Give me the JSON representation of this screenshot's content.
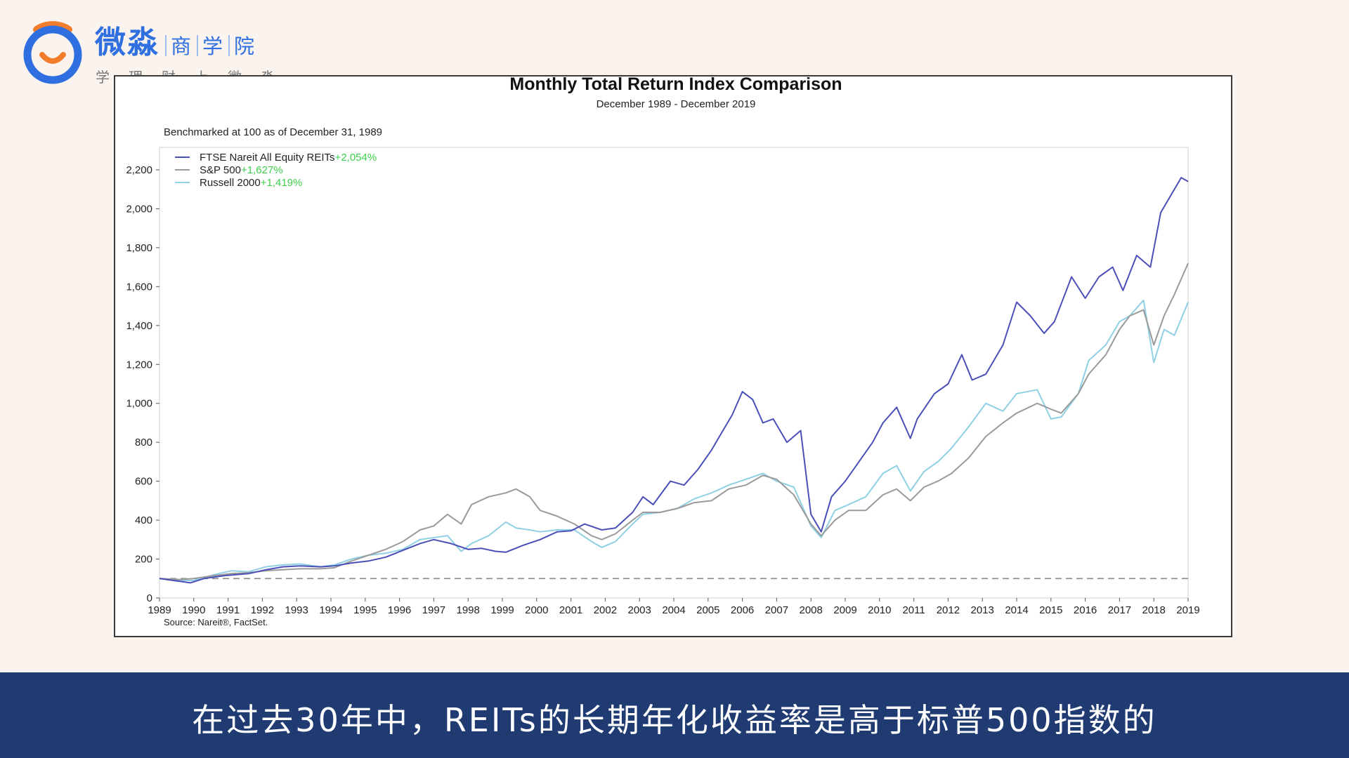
{
  "logo": {
    "brand": "微淼",
    "sub1": "商",
    "sub2": "学",
    "sub3": "院",
    "tagline": "学理财上微淼",
    "icon": "smile-ring-icon"
  },
  "subtitle": "在过去30年中，REITs的长期年化收益率是高于标普500指数的",
  "colors": {
    "background": "#fbf4ee",
    "subtitle_bar": "#1f3b72",
    "reits": "#4a4fb8",
    "sp500": "#9a9a9a",
    "russell": "#8fd0e4",
    "legend_pct": "#3ecf4a",
    "baseline": "#888888",
    "brand_blue": "#2f6fe0",
    "brand_orange": "#f27d2a"
  },
  "chart_data": {
    "type": "line",
    "title": "Monthly Total Return Index Comparison",
    "subtitle": "December 1989 - December 2019",
    "note": "Benchmarked at 100 as of December 31, 1989",
    "source": "Source: Nareit®, FactSet.",
    "x_ticks": [
      "1989",
      "1990",
      "1991",
      "1992",
      "1993",
      "1994",
      "1995",
      "1996",
      "1997",
      "1998",
      "1999",
      "2000",
      "2001",
      "2002",
      "2003",
      "2004",
      "2005",
      "2006",
      "2007",
      "2008",
      "2009",
      "2010",
      "2011",
      "2012",
      "2013",
      "2014",
      "2015",
      "2016",
      "2017",
      "2018",
      "2019"
    ],
    "y_ticks": [
      "0",
      "200",
      "400",
      "600",
      "800",
      "1,000",
      "1,200",
      "1,400",
      "1,600",
      "1,800",
      "2,000",
      "2,200"
    ],
    "xlim": [
      1989.9,
      2019.9
    ],
    "ylim": [
      0,
      2200
    ],
    "baseline": 100,
    "legend_position": "top-left",
    "series": [
      {
        "name": "FTSE Nareit All Equity REITs",
        "label": "+2,054%",
        "color": "#4a4fb8",
        "points": [
          [
            1989.9,
            100
          ],
          [
            1990.3,
            90
          ],
          [
            1990.8,
            78
          ],
          [
            1991.2,
            100
          ],
          [
            1991.8,
            115
          ],
          [
            1992.5,
            125
          ],
          [
            1993.0,
            145
          ],
          [
            1993.5,
            160
          ],
          [
            1994.0,
            165
          ],
          [
            1994.6,
            160
          ],
          [
            1995.0,
            165
          ],
          [
            1995.5,
            180
          ],
          [
            1996.0,
            190
          ],
          [
            1996.5,
            210
          ],
          [
            1997.0,
            245
          ],
          [
            1997.5,
            280
          ],
          [
            1997.9,
            300
          ],
          [
            1998.4,
            280
          ],
          [
            1998.9,
            250
          ],
          [
            1999.3,
            255
          ],
          [
            1999.7,
            240
          ],
          [
            2000.0,
            235
          ],
          [
            2000.5,
            270
          ],
          [
            2001.0,
            300
          ],
          [
            2001.5,
            340
          ],
          [
            2001.9,
            345
          ],
          [
            2002.3,
            380
          ],
          [
            2002.8,
            350
          ],
          [
            2003.2,
            360
          ],
          [
            2003.7,
            440
          ],
          [
            2004.0,
            520
          ],
          [
            2004.3,
            480
          ],
          [
            2004.8,
            600
          ],
          [
            2005.2,
            580
          ],
          [
            2005.6,
            660
          ],
          [
            2006.0,
            760
          ],
          [
            2006.3,
            850
          ],
          [
            2006.6,
            940
          ],
          [
            2006.9,
            1060
          ],
          [
            2007.2,
            1020
          ],
          [
            2007.5,
            900
          ],
          [
            2007.8,
            920
          ],
          [
            2008.2,
            800
          ],
          [
            2008.6,
            860
          ],
          [
            2008.9,
            430
          ],
          [
            2009.2,
            340
          ],
          [
            2009.5,
            520
          ],
          [
            2009.9,
            600
          ],
          [
            2010.3,
            700
          ],
          [
            2010.7,
            800
          ],
          [
            2011.0,
            900
          ],
          [
            2011.4,
            980
          ],
          [
            2011.8,
            820
          ],
          [
            2012.0,
            920
          ],
          [
            2012.5,
            1050
          ],
          [
            2012.9,
            1100
          ],
          [
            2013.3,
            1250
          ],
          [
            2013.6,
            1120
          ],
          [
            2014.0,
            1150
          ],
          [
            2014.5,
            1300
          ],
          [
            2014.9,
            1520
          ],
          [
            2015.3,
            1450
          ],
          [
            2015.7,
            1360
          ],
          [
            2016.0,
            1420
          ],
          [
            2016.5,
            1650
          ],
          [
            2016.9,
            1540
          ],
          [
            2017.3,
            1650
          ],
          [
            2017.7,
            1700
          ],
          [
            2018.0,
            1580
          ],
          [
            2018.4,
            1760
          ],
          [
            2018.8,
            1700
          ],
          [
            2019.1,
            1980
          ],
          [
            2019.4,
            2070
          ],
          [
            2019.7,
            2160
          ],
          [
            2019.9,
            2140
          ]
        ]
      },
      {
        "name": "S&P 500",
        "label": "+1,627%",
        "color": "#9a9a9a",
        "points": [
          [
            1989.9,
            100
          ],
          [
            1990.5,
            95
          ],
          [
            1990.9,
            100
          ],
          [
            1991.5,
            115
          ],
          [
            1992.0,
            125
          ],
          [
            1992.5,
            130
          ],
          [
            1993.0,
            140
          ],
          [
            1993.5,
            145
          ],
          [
            1994.0,
            150
          ],
          [
            1994.6,
            150
          ],
          [
            1995.0,
            155
          ],
          [
            1995.5,
            190
          ],
          [
            1996.0,
            220
          ],
          [
            1996.5,
            250
          ],
          [
            1997.0,
            290
          ],
          [
            1997.5,
            350
          ],
          [
            1997.9,
            370
          ],
          [
            1998.3,
            430
          ],
          [
            1998.7,
            380
          ],
          [
            1999.0,
            480
          ],
          [
            1999.5,
            520
          ],
          [
            2000.0,
            540
          ],
          [
            2000.3,
            560
          ],
          [
            2000.7,
            520
          ],
          [
            2001.0,
            450
          ],
          [
            2001.5,
            420
          ],
          [
            2002.0,
            380
          ],
          [
            2002.5,
            320
          ],
          [
            2002.8,
            300
          ],
          [
            2003.2,
            330
          ],
          [
            2003.7,
            400
          ],
          [
            2004.0,
            440
          ],
          [
            2004.5,
            440
          ],
          [
            2005.0,
            460
          ],
          [
            2005.5,
            490
          ],
          [
            2006.0,
            500
          ],
          [
            2006.5,
            560
          ],
          [
            2007.0,
            580
          ],
          [
            2007.5,
            630
          ],
          [
            2007.9,
            610
          ],
          [
            2008.4,
            530
          ],
          [
            2008.9,
            380
          ],
          [
            2009.2,
            320
          ],
          [
            2009.6,
            400
          ],
          [
            2010.0,
            450
          ],
          [
            2010.5,
            450
          ],
          [
            2011.0,
            530
          ],
          [
            2011.4,
            560
          ],
          [
            2011.8,
            500
          ],
          [
            2012.2,
            570
          ],
          [
            2012.6,
            600
          ],
          [
            2013.0,
            640
          ],
          [
            2013.5,
            720
          ],
          [
            2014.0,
            830
          ],
          [
            2014.5,
            900
          ],
          [
            2014.9,
            950
          ],
          [
            2015.5,
            1000
          ],
          [
            2015.9,
            970
          ],
          [
            2016.2,
            950
          ],
          [
            2016.7,
            1050
          ],
          [
            2017.0,
            1150
          ],
          [
            2017.5,
            1250
          ],
          [
            2017.9,
            1380
          ],
          [
            2018.2,
            1450
          ],
          [
            2018.6,
            1480
          ],
          [
            2018.9,
            1300
          ],
          [
            2019.2,
            1450
          ],
          [
            2019.5,
            1560
          ],
          [
            2019.9,
            1720
          ]
        ]
      },
      {
        "name": "Russell 2000",
        "label": "+1,419%",
        "color": "#8fd0e4",
        "points": [
          [
            1989.9,
            100
          ],
          [
            1990.5,
            90
          ],
          [
            1990.9,
            90
          ],
          [
            1991.5,
            120
          ],
          [
            1992.0,
            140
          ],
          [
            1992.5,
            135
          ],
          [
            1993.0,
            160
          ],
          [
            1993.5,
            170
          ],
          [
            1994.0,
            175
          ],
          [
            1994.6,
            160
          ],
          [
            1995.0,
            170
          ],
          [
            1995.5,
            200
          ],
          [
            1996.0,
            220
          ],
          [
            1996.5,
            230
          ],
          [
            1997.0,
            250
          ],
          [
            1997.5,
            300
          ],
          [
            1997.9,
            310
          ],
          [
            1998.3,
            320
          ],
          [
            1998.7,
            240
          ],
          [
            1999.0,
            280
          ],
          [
            1999.5,
            320
          ],
          [
            2000.0,
            390
          ],
          [
            2000.3,
            360
          ],
          [
            2000.7,
            350
          ],
          [
            2001.0,
            340
          ],
          [
            2001.5,
            350
          ],
          [
            2002.0,
            350
          ],
          [
            2002.5,
            290
          ],
          [
            2002.8,
            260
          ],
          [
            2003.2,
            290
          ],
          [
            2003.7,
            380
          ],
          [
            2004.0,
            430
          ],
          [
            2004.5,
            440
          ],
          [
            2005.0,
            460
          ],
          [
            2005.5,
            510
          ],
          [
            2006.0,
            540
          ],
          [
            2006.5,
            580
          ],
          [
            2007.0,
            610
          ],
          [
            2007.5,
            640
          ],
          [
            2007.9,
            600
          ],
          [
            2008.4,
            570
          ],
          [
            2008.9,
            370
          ],
          [
            2009.2,
            310
          ],
          [
            2009.6,
            450
          ],
          [
            2010.0,
            480
          ],
          [
            2010.5,
            520
          ],
          [
            2011.0,
            640
          ],
          [
            2011.4,
            680
          ],
          [
            2011.8,
            550
          ],
          [
            2012.2,
            650
          ],
          [
            2012.6,
            700
          ],
          [
            2013.0,
            770
          ],
          [
            2013.5,
            880
          ],
          [
            2014.0,
            1000
          ],
          [
            2014.5,
            960
          ],
          [
            2014.9,
            1050
          ],
          [
            2015.5,
            1070
          ],
          [
            2015.9,
            920
          ],
          [
            2016.2,
            930
          ],
          [
            2016.7,
            1050
          ],
          [
            2017.0,
            1220
          ],
          [
            2017.5,
            1300
          ],
          [
            2017.9,
            1420
          ],
          [
            2018.2,
            1450
          ],
          [
            2018.6,
            1530
          ],
          [
            2018.9,
            1210
          ],
          [
            2019.2,
            1380
          ],
          [
            2019.5,
            1350
          ],
          [
            2019.9,
            1520
          ]
        ]
      }
    ]
  }
}
